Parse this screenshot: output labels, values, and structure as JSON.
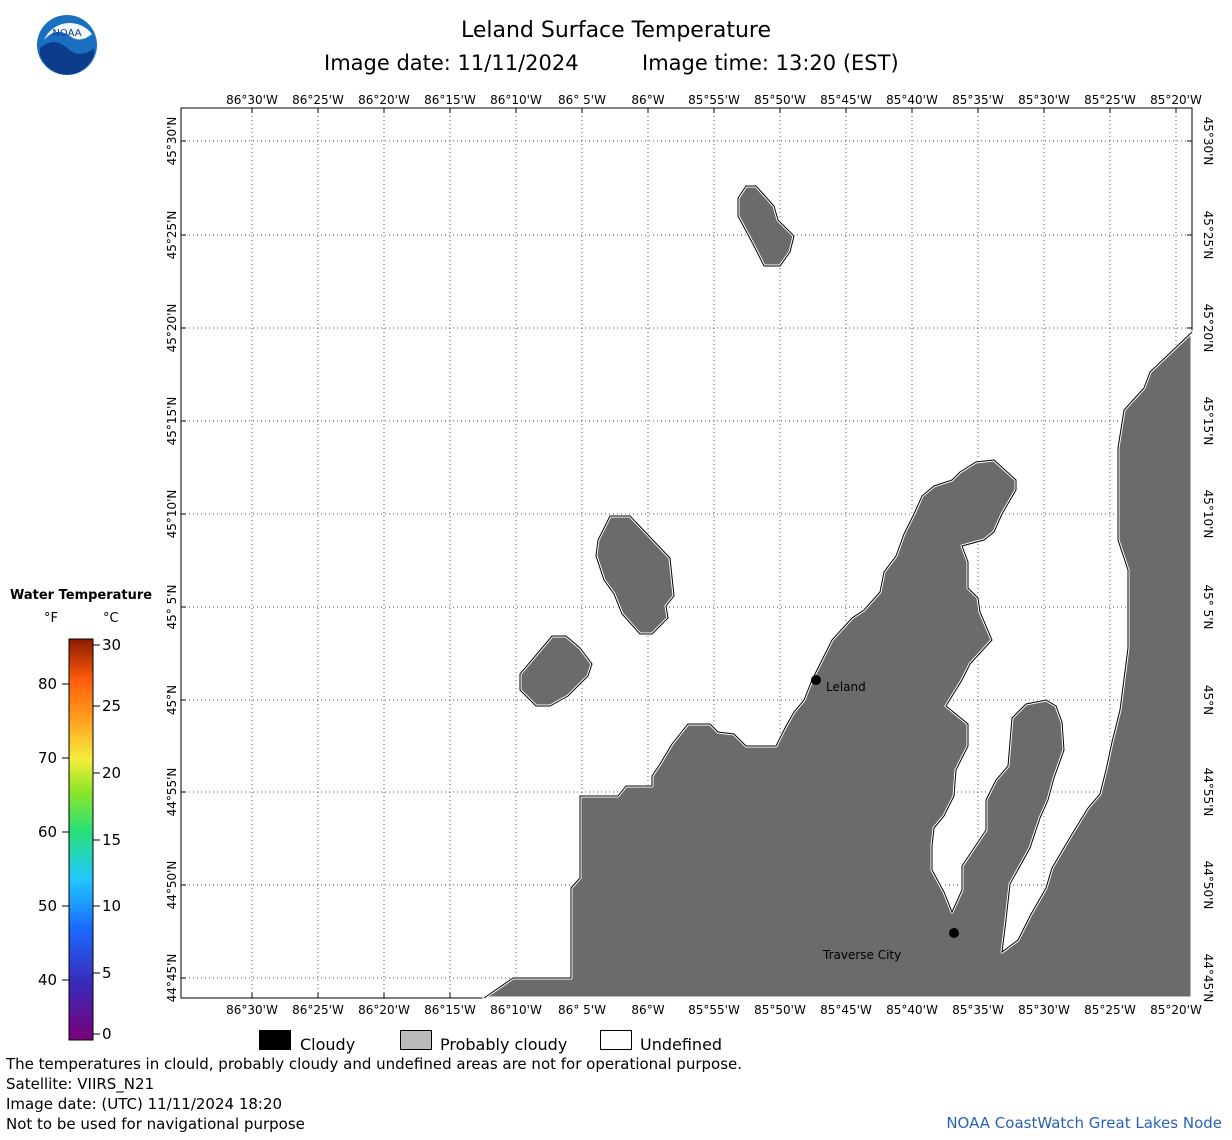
{
  "header": {
    "title": "Leland Surface Temperature",
    "image_date_label": "Image date: 11/11/2024",
    "image_time_label": "Image time: 13:20 (EST)",
    "logo_text": "NOAA"
  },
  "map": {
    "lon_labels": [
      "86°30'W",
      "86°25'W",
      "86°20'W",
      "86°15'W",
      "86°10'W",
      "86° 5'W",
      "86°W",
      "85°55'W",
      "85°50'W",
      "85°45'W",
      "85°40'W",
      "85°35'W",
      "85°30'W",
      "85°25'W",
      "85°20'W"
    ],
    "lat_labels": [
      "45°30'N",
      "45°25'N",
      "45°20'N",
      "45°15'N",
      "45°10'N",
      "45° 5'N",
      "45°N",
      "44°55'N",
      "44°50'N",
      "44°45'N"
    ],
    "cities": [
      {
        "name": "Leland"
      },
      {
        "name": "Traverse City"
      }
    ],
    "land_color": "#6b6b6b"
  },
  "colorbar": {
    "title": "Water Temperature",
    "unit_f": "°F",
    "unit_c": "°C",
    "f_ticks": [
      "80",
      "70",
      "60",
      "50",
      "40"
    ],
    "c_ticks": [
      "30",
      "25",
      "20",
      "15",
      "10",
      "5",
      "0"
    ]
  },
  "key": {
    "cloudy": "Cloudy",
    "probably_cloudy": "Probably cloudy",
    "undefined": "Undefined",
    "cloudy_color": "#000000",
    "probably_cloudy_color": "#bcbcbc",
    "undefined_color": "#ffffff"
  },
  "footer": {
    "disclaimer": "The temperatures in clould, probably cloudy and undefined areas are not for operational purpose.",
    "satellite": "Satellite: VIIRS_N21",
    "utc_date": "Image date: (UTC) 11/11/2024  18:20",
    "nav_warning": "Not to be used for navigational purpose",
    "credit": "NOAA CoastWatch Great Lakes Node"
  }
}
